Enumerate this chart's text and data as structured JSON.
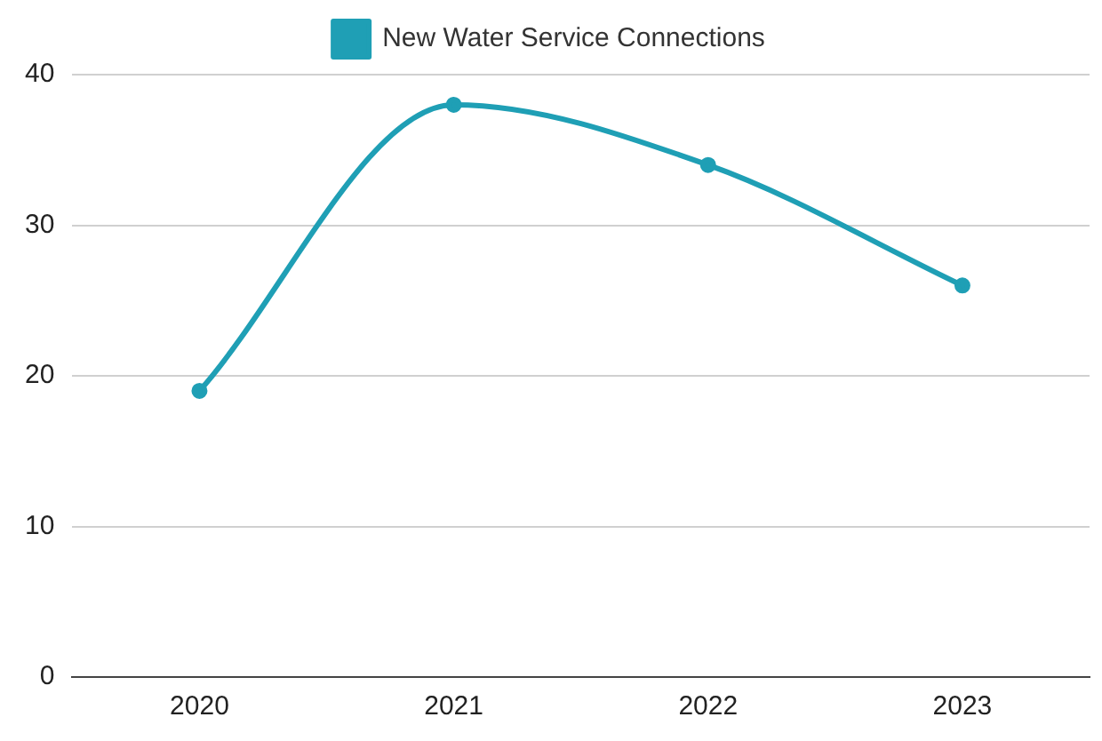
{
  "chart_data": {
    "type": "line",
    "categories": [
      "2020",
      "2021",
      "2022",
      "2023"
    ],
    "series": [
      {
        "name": "New Water Service Connections",
        "color": "#1f9fb5",
        "values": [
          19,
          38,
          34,
          26
        ]
      }
    ],
    "ylim": [
      0,
      40
    ],
    "yticks": [
      0,
      10,
      20,
      30,
      40
    ],
    "grid": "y",
    "legend": "top",
    "marker": "circle",
    "line_style": "solid"
  }
}
